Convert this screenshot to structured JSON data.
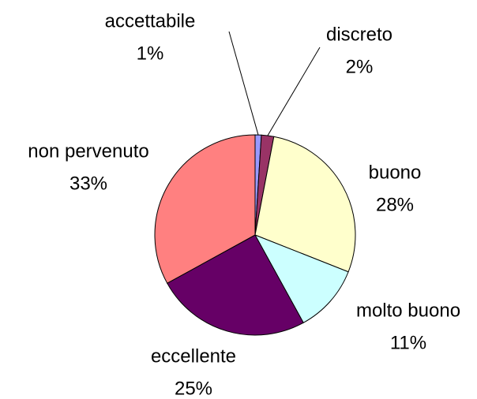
{
  "chart_data": {
    "type": "pie",
    "categories": [
      "accettabile",
      "discreto",
      "buono",
      "molto buono",
      "eccellente",
      "non pervenuto"
    ],
    "values": [
      1,
      2,
      28,
      11,
      25,
      33
    ],
    "value_labels": [
      "1%",
      "2%",
      "28%",
      "11%",
      "25%",
      "33%"
    ],
    "colors": [
      "#9999ff",
      "#993366",
      "#ffffcc",
      "#ccffff",
      "#660066",
      "#ff8080"
    ]
  }
}
